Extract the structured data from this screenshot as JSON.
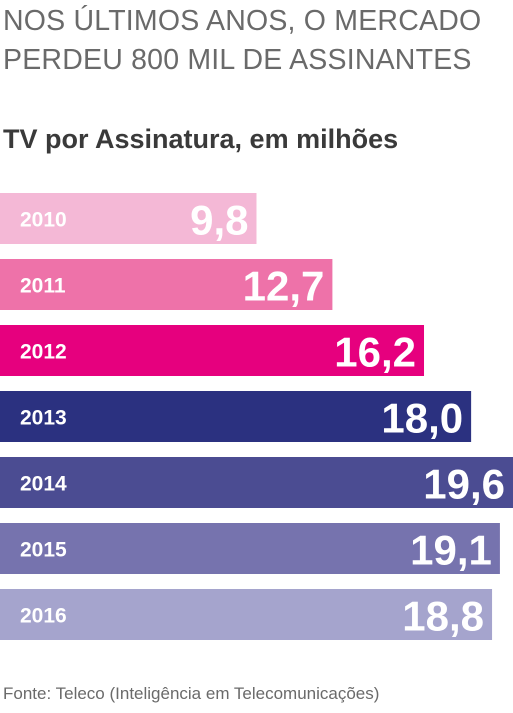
{
  "headline": "NOS ÚLTIMOS ANOS, O MERCADO PERDEU 800 MIL DE ASSINANTES",
  "subtitle": "TV por Assinatura, em milhões",
  "source": "Fonte: Teleco (Inteligência em Telecomunicações)",
  "chart_data": {
    "type": "bar",
    "orientation": "horizontal",
    "title": "TV por Assinatura, em milhões",
    "categories": [
      "2010",
      "2011",
      "2012",
      "2013",
      "2014",
      "2015",
      "2016"
    ],
    "values": [
      9.8,
      12.7,
      16.2,
      18.0,
      19.6,
      19.1,
      18.8
    ],
    "value_labels": [
      "9,8",
      "12,7",
      "16,2",
      "18,0",
      "19,6",
      "19,1",
      "18,8"
    ],
    "colors": [
      "#f4b8d6",
      "#ee72a9",
      "#e6007e",
      "#2b3180",
      "#4b4c92",
      "#7673ae",
      "#a5a4cd"
    ],
    "xlim": [
      0,
      19.6
    ],
    "grid": false,
    "legend": "none"
  }
}
